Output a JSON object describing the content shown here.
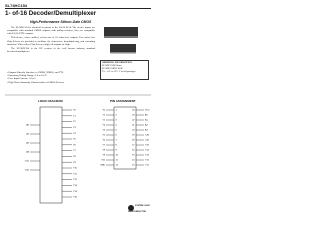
{
  "header": {
    "part_number": "SL74HC154",
    "title": "1- of-16 Decoder/Demultiplexer",
    "subtitle": "High-Performance Silicon-Gate CMOS"
  },
  "description": [
    "The SL74HC154 is identical in pinout to the LS/ALS154. The device inputs are compatible with standard CMOS outputs; with pullup resistors, they are compatible with LS/ALSTTL outputs.",
    "This device, when enabled, selects one of 16 active-low outputs. Two active-low Chip Selects are provided to facilitate the chip-select, demultiplexing, and cascading functions. When either Chip Select is high, all outputs are high.",
    "The SL74HC154 is the HC version of the well known industry standard decoder/demultiplexer."
  ],
  "features": [
    "Outputs Directly Interface to CMOS, NMOS, and TTL",
    "Operating Voltage Range: 2.0 to 6.0 V",
    "Low Input Current: 1.0 µA",
    "High Noise Immunity Characteristic of CMOS Devices"
  ],
  "ordering": {
    "title": "ORDERING INFORMATION",
    "lines": [
      "SL74HC154N Plastic",
      "SL74HC154DW SOIC",
      "TA = -55° to 125° C for all packages"
    ]
  },
  "logic_diagram": {
    "title": "LOGIC DIAGRAM",
    "inputs": [
      "A0",
      "A1",
      "A2",
      "A3",
      "CS1",
      "CS2"
    ],
    "outputs": [
      "Y0",
      "Y1",
      "Y2",
      "Y3",
      "Y4",
      "Y5",
      "Y6",
      "Y7",
      "Y8",
      "Y9",
      "Y10",
      "Y11",
      "Y12",
      "Y13",
      "Y14",
      "Y15"
    ]
  },
  "pin_assignment": {
    "title": "PIN ASSIGNMENT",
    "rows": [
      [
        "Y0",
        "1",
        "24",
        "VCC"
      ],
      [
        "Y1",
        "2",
        "23",
        "A0"
      ],
      [
        "Y2",
        "3",
        "22",
        "A1"
      ],
      [
        "Y3",
        "4",
        "21",
        "A2"
      ],
      [
        "Y4",
        "5",
        "20",
        "A3"
      ],
      [
        "Y5",
        "6",
        "19",
        "CS2"
      ],
      [
        "Y6",
        "7",
        "18",
        "CS1"
      ],
      [
        "Y7",
        "8",
        "17",
        "Y15"
      ],
      [
        "Y8",
        "9",
        "16",
        "Y14"
      ],
      [
        "Y9",
        "10",
        "15",
        "Y13"
      ],
      [
        "Y10",
        "11",
        "14",
        "Y12"
      ],
      [
        "GND",
        "12",
        "13",
        "Y11"
      ]
    ]
  },
  "logo": "SYSTEM LOGIC SEMICONDUCTOR"
}
